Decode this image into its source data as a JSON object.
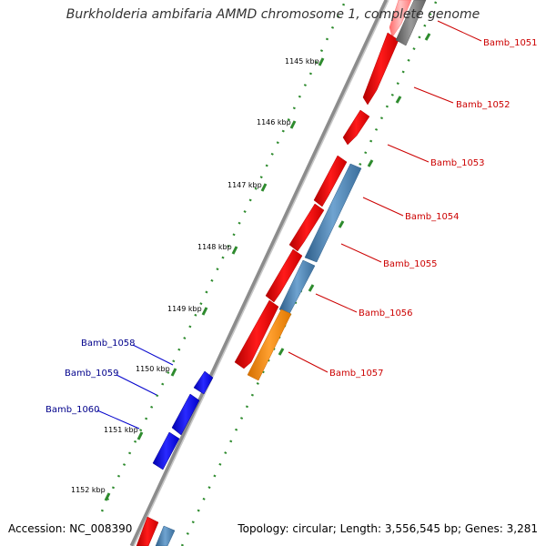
{
  "title": "Burkholderia ambifaria AMMD chromosome 1, complete genome",
  "accession": "Accession: NC_008390",
  "summary": "Topology: circular; Length: 3,556,545 bp; Genes: 3,281",
  "colors": {
    "background": "#ffffff",
    "backbone": "#8c8c8c",
    "tick": "#2e8b2e",
    "cds_red": "#ff0000",
    "cds_blue": "#0000ff",
    "cds_steel": "#4682b4",
    "cds_orange": "#ff8c00",
    "cds_gray": "#808080",
    "label_red": "#cc0000",
    "label_blue": "#00008b"
  },
  "scale_labels": [
    "1145 kbp",
    "1146 kbp",
    "1147 kbp",
    "1148 kbp",
    "1149 kbp",
    "1150 kbp",
    "1151 kbp",
    "1152 kbp"
  ],
  "genes_right": [
    "Bamb_1051",
    "Bamb_1052",
    "Bamb_1053",
    "Bamb_1054",
    "Bamb_1055",
    "Bamb_1056",
    "Bamb_1057"
  ],
  "genes_left": [
    "Bamb_1058",
    "Bamb_1059",
    "Bamb_1060"
  ]
}
